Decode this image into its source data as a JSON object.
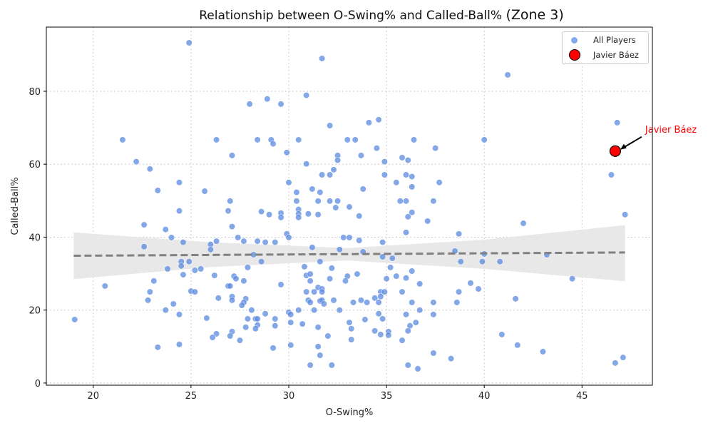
{
  "chart_data": {
    "type": "scatter",
    "title": "Relationship between O-Swing% and Called-Ball%",
    "title_suffix": "(Zone 3)",
    "xlabel": "O-Swing%",
    "ylabel": "Called-Ball%",
    "xlim": [
      17.6,
      48.6
    ],
    "ylim": [
      -0.6,
      97.6
    ],
    "xticks": [
      20,
      25,
      30,
      35,
      40,
      45
    ],
    "yticks": [
      0,
      20,
      40,
      60,
      80
    ],
    "grid": true,
    "legend_position": "top-right",
    "legend": [
      "All Players",
      "Javier Báez"
    ],
    "colors": {
      "all_players": "#5b8ae0",
      "highlight": "#ff0000",
      "trend": "#808080",
      "band": "#e6e6e6"
    },
    "series": [
      {
        "name": "All Players",
        "points": [
          [
            19.05,
            17.4
          ],
          [
            24.9,
            93.3
          ],
          [
            31.7,
            89
          ],
          [
            41.2,
            84.5
          ],
          [
            30.9,
            78.9
          ],
          [
            28.9,
            77.9
          ],
          [
            28.0,
            76.5
          ],
          [
            29.6,
            76.5
          ],
          [
            32.1,
            70.6
          ],
          [
            34.1,
            71.4
          ],
          [
            34.6,
            72.2
          ],
          [
            46.8,
            71.4
          ],
          [
            21.5,
            66.7
          ],
          [
            26.3,
            66.7
          ],
          [
            28.4,
            66.7
          ],
          [
            29.1,
            66.7
          ],
          [
            29.2,
            65.6
          ],
          [
            30.5,
            66.7
          ],
          [
            33.0,
            66.7
          ],
          [
            33.4,
            66.7
          ],
          [
            36.4,
            66.7
          ],
          [
            40.0,
            66.7
          ],
          [
            34.5,
            64.4
          ],
          [
            37.5,
            64.4
          ],
          [
            22.2,
            60.7
          ],
          [
            27.1,
            62.4
          ],
          [
            29.9,
            63.2
          ],
          [
            32.5,
            62.4
          ],
          [
            32.5,
            61.1
          ],
          [
            33.7,
            62.4
          ],
          [
            35.8,
            61.8
          ],
          [
            36.1,
            61.1
          ],
          [
            34.9,
            60.7
          ],
          [
            30.9,
            60.1
          ],
          [
            22.9,
            58.7
          ],
          [
            32.3,
            58.5
          ],
          [
            23.3,
            52.8
          ],
          [
            24.4,
            55.0
          ],
          [
            25.7,
            52.6
          ],
          [
            30.0,
            55.0
          ],
          [
            30.4,
            52.3
          ],
          [
            31.2,
            53.2
          ],
          [
            31.7,
            57.1
          ],
          [
            32.1,
            57.1
          ],
          [
            31.6,
            52.3
          ],
          [
            33.8,
            53.2
          ],
          [
            34.9,
            57.1
          ],
          [
            35.5,
            55.0
          ],
          [
            36.0,
            57.1
          ],
          [
            36.3,
            56.6
          ],
          [
            36.3,
            53.8
          ],
          [
            37.7,
            55.0
          ],
          [
            46.5,
            57.1
          ],
          [
            27.0,
            49.9
          ],
          [
            30.4,
            49.9
          ],
          [
            31.5,
            49.9
          ],
          [
            32.1,
            49.9
          ],
          [
            32.5,
            49.9
          ],
          [
            32.4,
            48.1
          ],
          [
            33.1,
            48.3
          ],
          [
            35.7,
            49.9
          ],
          [
            36.0,
            49.9
          ],
          [
            37.4,
            49.9
          ],
          [
            24.4,
            47.2
          ],
          [
            26.9,
            47.2
          ],
          [
            28.6,
            47.0
          ],
          [
            29.0,
            46.2
          ],
          [
            29.6,
            46.6
          ],
          [
            29.6,
            45.4
          ],
          [
            30.5,
            47.6
          ],
          [
            30.5,
            46.4
          ],
          [
            30.5,
            45.4
          ],
          [
            31.0,
            46.4
          ],
          [
            31.5,
            46.2
          ],
          [
            33.6,
            45.8
          ],
          [
            36.3,
            46.8
          ],
          [
            36.1,
            45.6
          ],
          [
            37.1,
            44.4
          ],
          [
            42.0,
            43.8
          ],
          [
            47.2,
            46.2
          ],
          [
            22.6,
            43.4
          ],
          [
            27.1,
            42.9
          ],
          [
            23.7,
            42.1
          ],
          [
            24.0,
            39.9
          ],
          [
            24.6,
            38.6
          ],
          [
            26.3,
            38.9
          ],
          [
            26.0,
            38.0
          ],
          [
            27.4,
            39.9
          ],
          [
            27.7,
            38.9
          ],
          [
            28.4,
            38.9
          ],
          [
            28.8,
            38.6
          ],
          [
            29.3,
            38.6
          ],
          [
            29.9,
            40.9
          ],
          [
            30.0,
            39.9
          ],
          [
            31.2,
            37.2
          ],
          [
            32.8,
            39.9
          ],
          [
            33.1,
            39.9
          ],
          [
            33.6,
            39.1
          ],
          [
            34.8,
            38.6
          ],
          [
            36.0,
            41.3
          ],
          [
            38.7,
            40.9
          ],
          [
            22.6,
            37.4
          ],
          [
            26.0,
            36.6
          ],
          [
            32.6,
            36.6
          ],
          [
            33.8,
            36.0
          ],
          [
            38.5,
            36.2
          ],
          [
            40.0,
            35.4
          ],
          [
            43.2,
            35.2
          ],
          [
            24.9,
            33.3
          ],
          [
            24.5,
            33.3
          ],
          [
            28.6,
            33.3
          ],
          [
            28.2,
            35.2
          ],
          [
            31.6,
            33.3
          ],
          [
            34.8,
            34.6
          ],
          [
            35.3,
            34.2
          ],
          [
            38.8,
            33.3
          ],
          [
            39.9,
            33.3
          ],
          [
            40.8,
            33.3
          ],
          [
            23.8,
            31.3
          ],
          [
            24.5,
            32.1
          ],
          [
            25.2,
            30.9
          ],
          [
            25.5,
            31.3
          ],
          [
            27.9,
            31.7
          ],
          [
            30.8,
            31.9
          ],
          [
            32.2,
            31.5
          ],
          [
            35.2,
            31.7
          ],
          [
            36.3,
            30.7
          ],
          [
            23.1,
            28.0
          ],
          [
            24.6,
            29.7
          ],
          [
            26.2,
            29.5
          ],
          [
            27.2,
            29.3
          ],
          [
            27.3,
            28.6
          ],
          [
            27.7,
            28.0
          ],
          [
            30.9,
            29.5
          ],
          [
            31.1,
            29.9
          ],
          [
            31.1,
            28.0
          ],
          [
            32.1,
            28.6
          ],
          [
            33.0,
            29.3
          ],
          [
            32.9,
            28.0
          ],
          [
            33.5,
            29.9
          ],
          [
            35.0,
            28.6
          ],
          [
            35.5,
            29.3
          ],
          [
            36.0,
            28.8
          ],
          [
            36.7,
            27.2
          ],
          [
            39.3,
            27.4
          ],
          [
            44.5,
            28.6
          ],
          [
            29.6,
            27.0
          ],
          [
            26.9,
            26.6
          ],
          [
            20.6,
            26.6
          ],
          [
            25.0,
            25.2
          ],
          [
            25.2,
            25.0
          ],
          [
            22.9,
            25.0
          ],
          [
            27.0,
            26.6
          ],
          [
            30.9,
            25.0
          ],
          [
            31.5,
            26.2
          ],
          [
            31.7,
            25.8
          ],
          [
            31.3,
            25.0
          ],
          [
            31.7,
            25.0
          ],
          [
            34.7,
            25.0
          ],
          [
            34.9,
            25.0
          ],
          [
            35.8,
            25.0
          ],
          [
            38.7,
            25.0
          ],
          [
            39.7,
            25.8
          ],
          [
            22.8,
            22.7
          ],
          [
            26.4,
            23.3
          ],
          [
            27.1,
            23.7
          ],
          [
            27.1,
            22.7
          ],
          [
            27.8,
            23.1
          ],
          [
            27.7,
            22.1
          ],
          [
            27.6,
            21.3
          ],
          [
            31.0,
            22.7
          ],
          [
            31.1,
            22.1
          ],
          [
            31.6,
            22.5
          ],
          [
            31.7,
            22.7
          ],
          [
            31.8,
            21.7
          ],
          [
            32.3,
            22.7
          ],
          [
            33.3,
            22.1
          ],
          [
            33.7,
            22.7
          ],
          [
            34.0,
            22.1
          ],
          [
            34.4,
            23.3
          ],
          [
            34.7,
            23.7
          ],
          [
            34.6,
            22.1
          ],
          [
            36.3,
            22.1
          ],
          [
            37.4,
            22.1
          ],
          [
            38.6,
            22.1
          ],
          [
            41.6,
            23.1
          ],
          [
            24.1,
            21.7
          ],
          [
            23.7,
            20.0
          ],
          [
            28.1,
            20.0
          ],
          [
            30.0,
            19.4
          ],
          [
            30.1,
            18.8
          ],
          [
            30.5,
            20.0
          ],
          [
            31.3,
            20.0
          ],
          [
            32.6,
            20.0
          ],
          [
            28.8,
            19.0
          ],
          [
            24.4,
            18.8
          ],
          [
            25.8,
            17.8
          ],
          [
            27.9,
            17.6
          ],
          [
            28.3,
            17.6
          ],
          [
            28.4,
            17.6
          ],
          [
            29.3,
            17.6
          ],
          [
            30.1,
            16.6
          ],
          [
            30.7,
            16.2
          ],
          [
            33.1,
            16.6
          ],
          [
            33.9,
            17.4
          ],
          [
            34.8,
            17.6
          ],
          [
            34.6,
            19.0
          ],
          [
            36.0,
            18.8
          ],
          [
            36.5,
            16.6
          ],
          [
            36.7,
            20.0
          ],
          [
            37.4,
            18.8
          ],
          [
            27.8,
            15.3
          ],
          [
            28.4,
            15.9
          ],
          [
            28.3,
            14.9
          ],
          [
            29.3,
            15.7
          ],
          [
            31.5,
            15.3
          ],
          [
            33.2,
            14.9
          ],
          [
            35.1,
            14.1
          ],
          [
            36.2,
            15.7
          ],
          [
            36.1,
            14.3
          ],
          [
            27.1,
            14.1
          ],
          [
            26.3,
            13.5
          ],
          [
            26.1,
            12.5
          ],
          [
            27.0,
            12.9
          ],
          [
            27.5,
            11.7
          ],
          [
            32.0,
            12.9
          ],
          [
            33.2,
            11.9
          ],
          [
            34.4,
            14.3
          ],
          [
            34.7,
            13.3
          ],
          [
            35.1,
            13.1
          ],
          [
            35.8,
            11.7
          ],
          [
            40.9,
            13.3
          ],
          [
            23.3,
            9.8
          ],
          [
            24.4,
            10.6
          ],
          [
            29.2,
            9.6
          ],
          [
            30.1,
            10.4
          ],
          [
            31.5,
            10.0
          ],
          [
            31.6,
            7.6
          ],
          [
            37.4,
            8.2
          ],
          [
            38.3,
            6.7
          ],
          [
            41.7,
            10.4
          ],
          [
            43.0,
            8.6
          ],
          [
            47.1,
            7.0
          ],
          [
            46.7,
            5.5
          ],
          [
            31.1,
            4.9
          ],
          [
            32.2,
            4.9
          ],
          [
            36.1,
            4.9
          ],
          [
            36.6,
            3.9
          ]
        ]
      },
      {
        "name": "Javier Báez",
        "points": [
          [
            46.7,
            63.6
          ]
        ]
      }
    ],
    "trend_line": {
      "x": [
        19.0,
        47.2
      ],
      "y": [
        34.9,
        35.8
      ]
    },
    "confidence_band": {
      "x": [
        19.0,
        26.0,
        33.0,
        40.0,
        47.2
      ],
      "upper": [
        41.3,
        38.6,
        37.0,
        39.3,
        43.3
      ],
      "lower": [
        28.5,
        31.8,
        33.6,
        31.3,
        27.9
      ]
    },
    "annotation": {
      "text": "Javier Báez",
      "color": "#ff0000"
    }
  }
}
